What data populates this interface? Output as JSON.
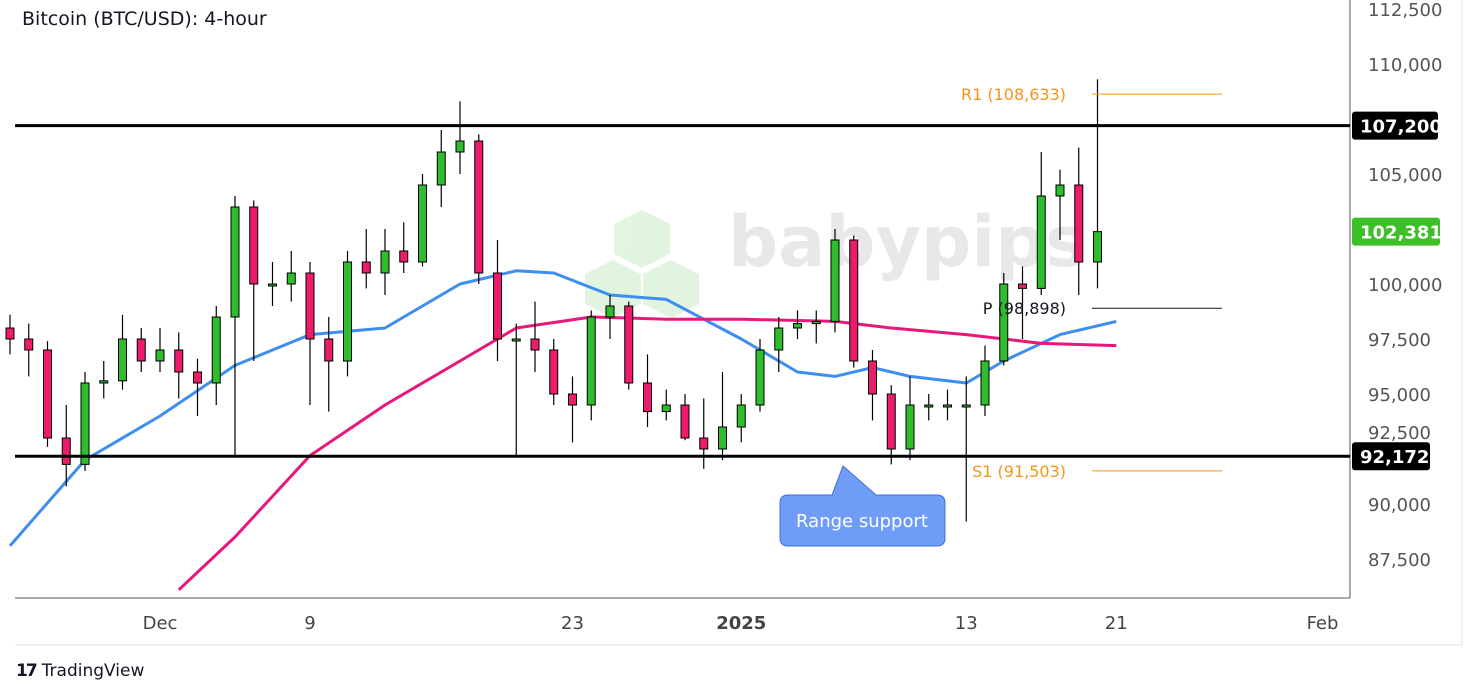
{
  "chart_data": {
    "type": "candlestick",
    "title": "Bitcoin (BTC/USD): 4-hour",
    "ylim": [
      86000,
      112800
    ],
    "y_ticks": [
      87500,
      90000,
      92500,
      95000,
      97500,
      100000,
      105000,
      110000,
      112500
    ],
    "y_tick_labels": [
      "87,500",
      "90,000",
      "92,500",
      "95,000",
      "97,500",
      "100,000",
      "105,000",
      "110,000",
      "112,500"
    ],
    "x_range": [
      "2024-11-23",
      "2025-02-03"
    ],
    "x_ticks": [
      {
        "date": "2024-12-01",
        "label": "Dec",
        "bold": false
      },
      {
        "date": "2024-12-09",
        "label": "9",
        "bold": false
      },
      {
        "date": "2024-12-23",
        "label": "23",
        "bold": false
      },
      {
        "date": "2025-01-01",
        "label": "2025",
        "bold": true
      },
      {
        "date": "2025-01-13",
        "label": "13",
        "bold": false
      },
      {
        "date": "2025-01-21",
        "label": "21",
        "bold": false
      },
      {
        "date": "2025-02-01",
        "label": "Feb",
        "bold": false
      }
    ],
    "candles": [
      [
        "2024-11-23",
        98000,
        98600,
        96800,
        97500
      ],
      [
        "2024-11-24",
        97500,
        98200,
        95800,
        97000
      ],
      [
        "2024-11-25",
        97000,
        97400,
        92600,
        93000
      ],
      [
        "2024-11-26",
        93000,
        94500,
        90800,
        91800
      ],
      [
        "2024-11-27",
        91800,
        96000,
        91500,
        95500
      ],
      [
        "2024-11-28",
        95500,
        96500,
        94800,
        95600
      ],
      [
        "2024-11-29",
        95600,
        98600,
        95200,
        97500
      ],
      [
        "2024-11-30",
        97500,
        98000,
        96000,
        96500
      ],
      [
        "2024-12-01",
        96500,
        98000,
        96000,
        97000
      ],
      [
        "2024-12-02",
        97000,
        97800,
        94800,
        96000
      ],
      [
        "2024-12-03",
        96000,
        96600,
        94000,
        95500
      ],
      [
        "2024-12-04",
        95500,
        99000,
        94500,
        98500
      ],
      [
        "2024-12-05",
        98500,
        104000,
        92200,
        103500
      ],
      [
        "2024-12-06",
        103500,
        103800,
        96500,
        100000
      ],
      [
        "2024-12-07",
        100000,
        101000,
        99000,
        100000
      ],
      [
        "2024-12-08",
        100000,
        101500,
        99200,
        100500
      ],
      [
        "2024-12-09",
        100500,
        101000,
        94500,
        97500
      ],
      [
        "2024-12-10",
        97500,
        98500,
        94200,
        96500
      ],
      [
        "2024-12-11",
        96500,
        101500,
        95800,
        101000
      ],
      [
        "2024-12-12",
        101000,
        102500,
        99800,
        100500
      ],
      [
        "2024-12-13",
        100500,
        102500,
        99500,
        101500
      ],
      [
        "2024-12-14",
        101500,
        102800,
        100500,
        101000
      ],
      [
        "2024-12-15",
        101000,
        105000,
        100800,
        104500
      ],
      [
        "2024-12-16",
        104500,
        107000,
        103500,
        106000
      ],
      [
        "2024-12-17",
        106000,
        108300,
        105000,
        106500
      ],
      [
        "2024-12-18",
        106500,
        106800,
        100000,
        100500
      ],
      [
        "2024-12-19",
        100500,
        102000,
        96500,
        97500
      ],
      [
        "2024-12-20",
        97500,
        98200,
        92200,
        97500
      ],
      [
        "2024-12-21",
        97500,
        99200,
        96000,
        97000
      ],
      [
        "2024-12-22",
        97000,
        97500,
        94500,
        95000
      ],
      [
        "2024-12-23",
        95000,
        95800,
        92800,
        94500
      ],
      [
        "2024-12-24",
        94500,
        98800,
        93800,
        98500
      ],
      [
        "2024-12-25",
        98500,
        99500,
        97500,
        99000
      ],
      [
        "2024-12-26",
        99000,
        99200,
        95200,
        95500
      ],
      [
        "2024-12-27",
        95500,
        96800,
        93500,
        94200
      ],
      [
        "2024-12-28",
        94200,
        95200,
        93800,
        94500
      ],
      [
        "2024-12-29",
        94500,
        95000,
        92900,
        93000
      ],
      [
        "2024-12-30",
        93000,
        94800,
        91600,
        92500
      ],
      [
        "2024-12-31",
        92500,
        96000,
        92000,
        93500
      ],
      [
        "2025-01-01",
        93500,
        95000,
        92800,
        94500
      ],
      [
        "2025-01-02",
        94500,
        97500,
        94200,
        97000
      ],
      [
        "2025-01-03",
        97000,
        98500,
        96000,
        98000
      ],
      [
        "2025-01-04",
        98000,
        98800,
        97500,
        98200
      ],
      [
        "2025-01-05",
        98200,
        98800,
        97300,
        98300
      ],
      [
        "2025-01-06",
        98300,
        102500,
        97800,
        102000
      ],
      [
        "2025-01-07",
        102000,
        102200,
        96200,
        96500
      ],
      [
        "2025-01-08",
        96500,
        97000,
        93800,
        95000
      ],
      [
        "2025-01-09",
        95000,
        95400,
        91800,
        92500
      ],
      [
        "2025-01-10",
        92500,
        95800,
        92000,
        94500
      ],
      [
        "2025-01-11",
        94500,
        95000,
        93800,
        94500
      ],
      [
        "2025-01-12",
        94500,
        95200,
        93800,
        94500
      ],
      [
        "2025-01-13",
        94500,
        95800,
        89200,
        94500
      ],
      [
        "2025-01-14",
        94500,
        97200,
        94000,
        96500
      ],
      [
        "2025-01-15",
        96500,
        100500,
        96300,
        100000
      ],
      [
        "2025-01-16",
        100000,
        100800,
        97500,
        99800
      ],
      [
        "2025-01-17",
        99800,
        106000,
        99500,
        104000
      ],
      [
        "2025-01-18",
        104000,
        105200,
        102000,
        104500
      ],
      [
        "2025-01-19",
        104500,
        106200,
        99500,
        101000
      ],
      [
        "2025-01-20",
        101000,
        109300,
        99800,
        102381
      ]
    ],
    "moving_averages": [
      {
        "color": "#3d8ef0",
        "points": [
          [
            "2024-11-23",
            88100
          ],
          [
            "2024-11-27",
            92000
          ],
          [
            "2024-12-01",
            94000
          ],
          [
            "2024-12-05",
            96300
          ],
          [
            "2024-12-09",
            97700
          ],
          [
            "2024-12-13",
            98000
          ],
          [
            "2024-12-17",
            100000
          ],
          [
            "2024-12-20",
            100600
          ],
          [
            "2024-12-22",
            100500
          ],
          [
            "2024-12-25",
            99500
          ],
          [
            "2024-12-28",
            99300
          ],
          [
            "2025-01-01",
            97500
          ],
          [
            "2025-01-04",
            96000
          ],
          [
            "2025-01-06",
            95800
          ],
          [
            "2025-01-08",
            96200
          ],
          [
            "2025-01-10",
            95800
          ],
          [
            "2025-01-13",
            95500
          ],
          [
            "2025-01-15",
            96500
          ],
          [
            "2025-01-18",
            97700
          ],
          [
            "2025-01-21",
            98300
          ]
        ]
      },
      {
        "color": "#e8177a",
        "points": [
          [
            "2024-12-02",
            86100
          ],
          [
            "2024-12-05",
            88500
          ],
          [
            "2024-12-09",
            92200
          ],
          [
            "2024-12-13",
            94500
          ],
          [
            "2024-12-17",
            96500
          ],
          [
            "2024-12-20",
            98000
          ],
          [
            "2024-12-24",
            98500
          ],
          [
            "2024-12-28",
            98400
          ],
          [
            "2025-01-01",
            98400
          ],
          [
            "2025-01-06",
            98300
          ],
          [
            "2025-01-09",
            98000
          ],
          [
            "2025-01-13",
            97700
          ],
          [
            "2025-01-17",
            97300
          ],
          [
            "2025-01-21",
            97200
          ]
        ]
      }
    ],
    "horizontal_lines": [
      {
        "value": 107200,
        "label": "107,200",
        "color": "#000000"
      },
      {
        "value": 92172,
        "label": "92,172",
        "color": "#000000"
      }
    ],
    "pivot_levels": [
      {
        "value": 108633,
        "label": "R1 (108,633)",
        "color": "#f7931a"
      },
      {
        "value": 98898,
        "label": "P (98,898)",
        "color": "#131722"
      },
      {
        "value": 91503,
        "label": "S1 (91,503)",
        "color": "#f7931a"
      }
    ],
    "last_price": {
      "value": 102381,
      "label": "102,381",
      "color": "#3cbf27"
    },
    "annotation": {
      "text": "Range support",
      "color": "#6e9cf7"
    },
    "watermark": "babypips",
    "up_color": "#2dbd2d",
    "down_color": "#ec1c6b"
  },
  "footer": {
    "brand": "TradingView"
  }
}
